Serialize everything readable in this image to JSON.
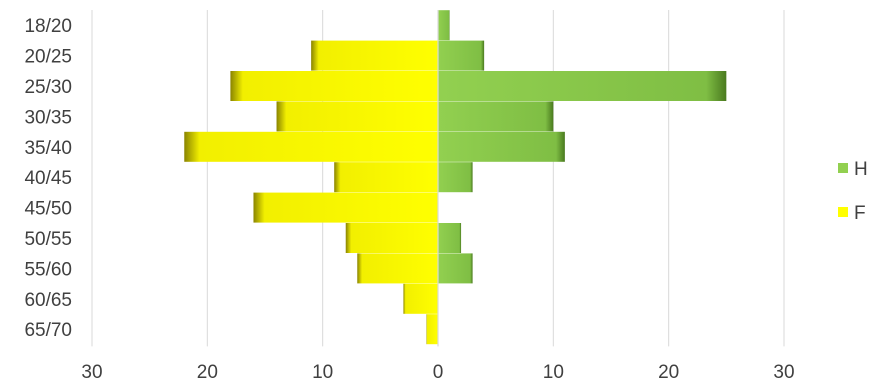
{
  "chart_data": {
    "type": "bar",
    "orientation": "horizontal",
    "layout": "population-pyramid",
    "categories": [
      "18/20",
      "20/25",
      "25/30",
      "30/35",
      "35/40",
      "40/45",
      "45/50",
      "50/55",
      "55/60",
      "60/65",
      "65/70"
    ],
    "series": [
      {
        "name": "H",
        "side": "right",
        "color": "#92d050",
        "values": [
          1,
          4,
          25,
          10,
          11,
          3,
          0,
          2,
          3,
          0,
          0
        ]
      },
      {
        "name": "F",
        "side": "left",
        "color": "#ffff00",
        "values": [
          0,
          11,
          18,
          14,
          22,
          9,
          16,
          8,
          7,
          3,
          1
        ]
      }
    ],
    "xlim": [
      -30,
      30
    ],
    "x_ticks": [
      -30,
      -20,
      -10,
      0,
      10,
      20,
      30
    ],
    "x_tick_labels": [
      "30",
      "20",
      "10",
      "0",
      "10",
      "20",
      "30"
    ],
    "grid": true,
    "legend": "right",
    "title": "",
    "xlabel": "",
    "ylabel": ""
  }
}
